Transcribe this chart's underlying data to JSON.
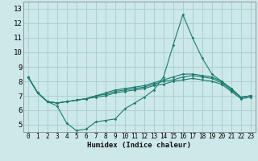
{
  "xlabel": "Humidex (Indice chaleur)",
  "background_color": "#cce8e8",
  "line_color": "#1a7a6e",
  "grid_color": "#aacfcf",
  "xlim": [
    -0.5,
    23.5
  ],
  "ylim": [
    4.5,
    13.5
  ],
  "xticks": [
    0,
    1,
    2,
    3,
    4,
    5,
    6,
    7,
    8,
    9,
    10,
    11,
    12,
    13,
    14,
    15,
    16,
    17,
    18,
    19,
    20,
    21,
    22,
    23
  ],
  "yticks": [
    5,
    6,
    7,
    8,
    9,
    10,
    11,
    12,
    13
  ],
  "lines": [
    [
      8.3,
      7.2,
      6.6,
      6.3,
      5.1,
      4.6,
      4.7,
      5.2,
      5.3,
      5.4,
      6.1,
      6.5,
      6.9,
      7.4,
      8.3,
      10.5,
      12.6,
      11.0,
      9.6,
      8.5,
      8.0,
      7.5,
      6.9,
      7.0
    ],
    [
      8.3,
      7.2,
      6.6,
      6.5,
      6.6,
      6.7,
      6.8,
      7.0,
      7.2,
      7.4,
      7.5,
      7.6,
      7.7,
      7.9,
      8.1,
      8.3,
      8.5,
      8.5,
      8.4,
      8.3,
      8.0,
      7.5,
      6.9,
      7.0
    ],
    [
      8.3,
      7.2,
      6.6,
      6.5,
      6.6,
      6.7,
      6.8,
      7.0,
      7.1,
      7.3,
      7.4,
      7.5,
      7.6,
      7.8,
      8.0,
      8.1,
      8.3,
      8.4,
      8.3,
      8.2,
      7.9,
      7.4,
      6.9,
      7.0
    ],
    [
      8.3,
      7.2,
      6.6,
      6.5,
      6.6,
      6.7,
      6.8,
      6.9,
      7.0,
      7.2,
      7.3,
      7.4,
      7.5,
      7.7,
      7.8,
      8.0,
      8.1,
      8.2,
      8.1,
      8.0,
      7.8,
      7.3,
      6.8,
      6.9
    ]
  ]
}
